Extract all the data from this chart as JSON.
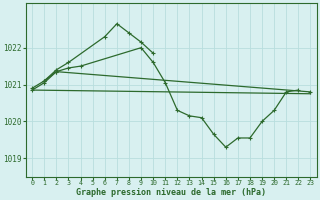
{
  "background_color": "#d8f0f0",
  "grid_color": "#b8dede",
  "line_color": "#2d6a2d",
  "xlabel": "Graphe pression niveau de la mer (hPa)",
  "xlim": [
    -0.5,
    23.5
  ],
  "ylim": [
    1018.5,
    1023.2
  ],
  "yticks": [
    1019,
    1020,
    1021,
    1022
  ],
  "xticks": [
    0,
    1,
    2,
    3,
    4,
    5,
    6,
    7,
    8,
    9,
    10,
    11,
    12,
    13,
    14,
    15,
    16,
    17,
    18,
    19,
    20,
    21,
    22,
    23
  ],
  "series1_x": [
    0,
    1,
    2,
    23
  ],
  "series1_y": [
    1020.9,
    1021.1,
    1021.35,
    1020.8
  ],
  "series2_x": [
    1,
    2,
    3,
    6,
    7,
    8,
    9,
    10
  ],
  "series2_y": [
    1021.1,
    1021.4,
    1021.6,
    1022.3,
    1022.65,
    1022.4,
    1022.15,
    1021.85
  ],
  "series3_x": [
    0,
    1,
    2,
    3,
    4,
    9,
    10,
    11,
    12,
    13,
    14,
    15,
    16,
    17,
    18,
    19,
    20,
    21,
    22
  ],
  "series3_y": [
    1020.85,
    1021.05,
    1021.35,
    1021.45,
    1021.5,
    1022.0,
    1021.6,
    1021.05,
    1020.3,
    1020.15,
    1020.1,
    1019.65,
    1019.3,
    1019.55,
    1019.55,
    1020.0,
    1020.3,
    1020.8,
    1020.85
  ],
  "series4_x": [
    0,
    23
  ],
  "series4_y": [
    1020.85,
    1020.75
  ]
}
